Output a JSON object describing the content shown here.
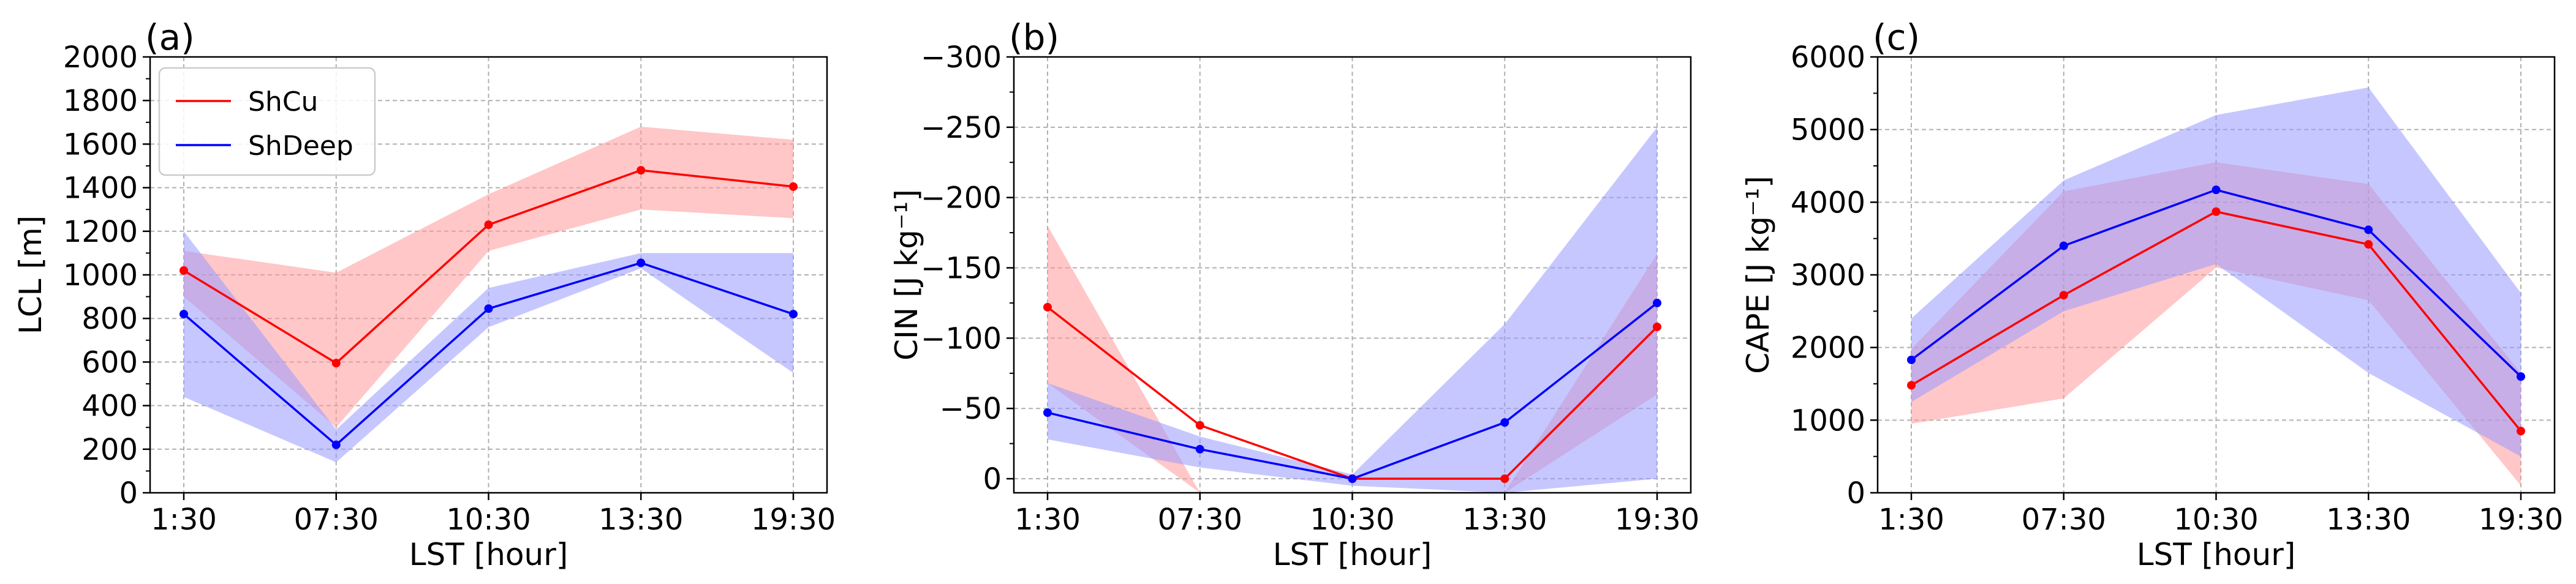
{
  "colors": {
    "ShCu": "#ff0000",
    "ShDeep": "#0000ff",
    "ShCu_fill": "#ff9999",
    "ShDeep_fill": "#9999ff"
  },
  "legend": {
    "entries": [
      "ShCu",
      "ShDeep"
    ]
  },
  "chart_data": [
    {
      "panel": "(a)",
      "type": "line",
      "categories": [
        "1:30",
        "07:30",
        "10:30",
        "13:30",
        "19:30"
      ],
      "xlabel": "LST [hour]",
      "ylabel": "LCL [m]",
      "ylim": [
        0,
        2000
      ],
      "yticks": [
        0,
        200,
        400,
        600,
        800,
        1000,
        1200,
        1400,
        1600,
        1800,
        2000
      ],
      "grid": true,
      "legend": "top-left",
      "series": [
        {
          "name": "ShCu",
          "values": [
            1020,
            595,
            1230,
            1480,
            1405
          ],
          "lower": [
            900,
            300,
            1110,
            1300,
            1260
          ],
          "upper": [
            1110,
            1010,
            1370,
            1680,
            1620
          ]
        },
        {
          "name": "ShDeep",
          "values": [
            820,
            220,
            845,
            1055,
            820
          ],
          "lower": [
            440,
            140,
            760,
            1030,
            550
          ],
          "upper": [
            1200,
            290,
            940,
            1100,
            1100
          ]
        }
      ]
    },
    {
      "panel": "(b)",
      "type": "line",
      "categories": [
        "1:30",
        "07:30",
        "10:30",
        "13:30",
        "19:30"
      ],
      "xlabel": "LST [hour]",
      "ylabel": "CIN [J kg⁻¹]",
      "ylim": [
        10,
        -300
      ],
      "yticks": [
        0,
        -50,
        -100,
        -150,
        -200,
        -250,
        -300
      ],
      "ytick_labels": [
        "0",
        "−50",
        "−100",
        "−150",
        "−200",
        "−250",
        "−300"
      ],
      "inverted_y": true,
      "grid": true,
      "series": [
        {
          "name": "ShCu",
          "values": [
            -122,
            -38,
            0,
            0,
            -108
          ],
          "lower": [
            -180,
            10,
            10,
            10,
            -160
          ],
          "upper": [
            -68,
            10,
            10,
            10,
            -60
          ]
        },
        {
          "name": "ShDeep",
          "values": [
            -47,
            -21,
            0,
            -40,
            -125
          ],
          "lower": [
            -68,
            -30,
            -3,
            -110,
            -250
          ],
          "upper": [
            -28,
            -8,
            5,
            10,
            0
          ]
        }
      ]
    },
    {
      "panel": "(c)",
      "type": "line",
      "categories": [
        "1:30",
        "07:30",
        "10:30",
        "13:30",
        "19:30"
      ],
      "xlabel": "LST [hour]",
      "ylabel": "CAPE [J kg⁻¹]",
      "ylim": [
        0,
        6000
      ],
      "yticks": [
        0,
        1000,
        2000,
        3000,
        4000,
        5000,
        6000
      ],
      "grid": true,
      "series": [
        {
          "name": "ShCu",
          "values": [
            1480,
            2720,
            3870,
            3420,
            850
          ],
          "lower": [
            950,
            1300,
            3100,
            2650,
            100
          ],
          "upper": [
            1980,
            4150,
            4550,
            4250,
            1650
          ]
        },
        {
          "name": "ShDeep",
          "values": [
            1830,
            3400,
            4170,
            3620,
            1600
          ],
          "lower": [
            1250,
            2500,
            3150,
            1650,
            500
          ],
          "upper": [
            2400,
            4300,
            5200,
            5580,
            2750
          ]
        }
      ]
    }
  ]
}
